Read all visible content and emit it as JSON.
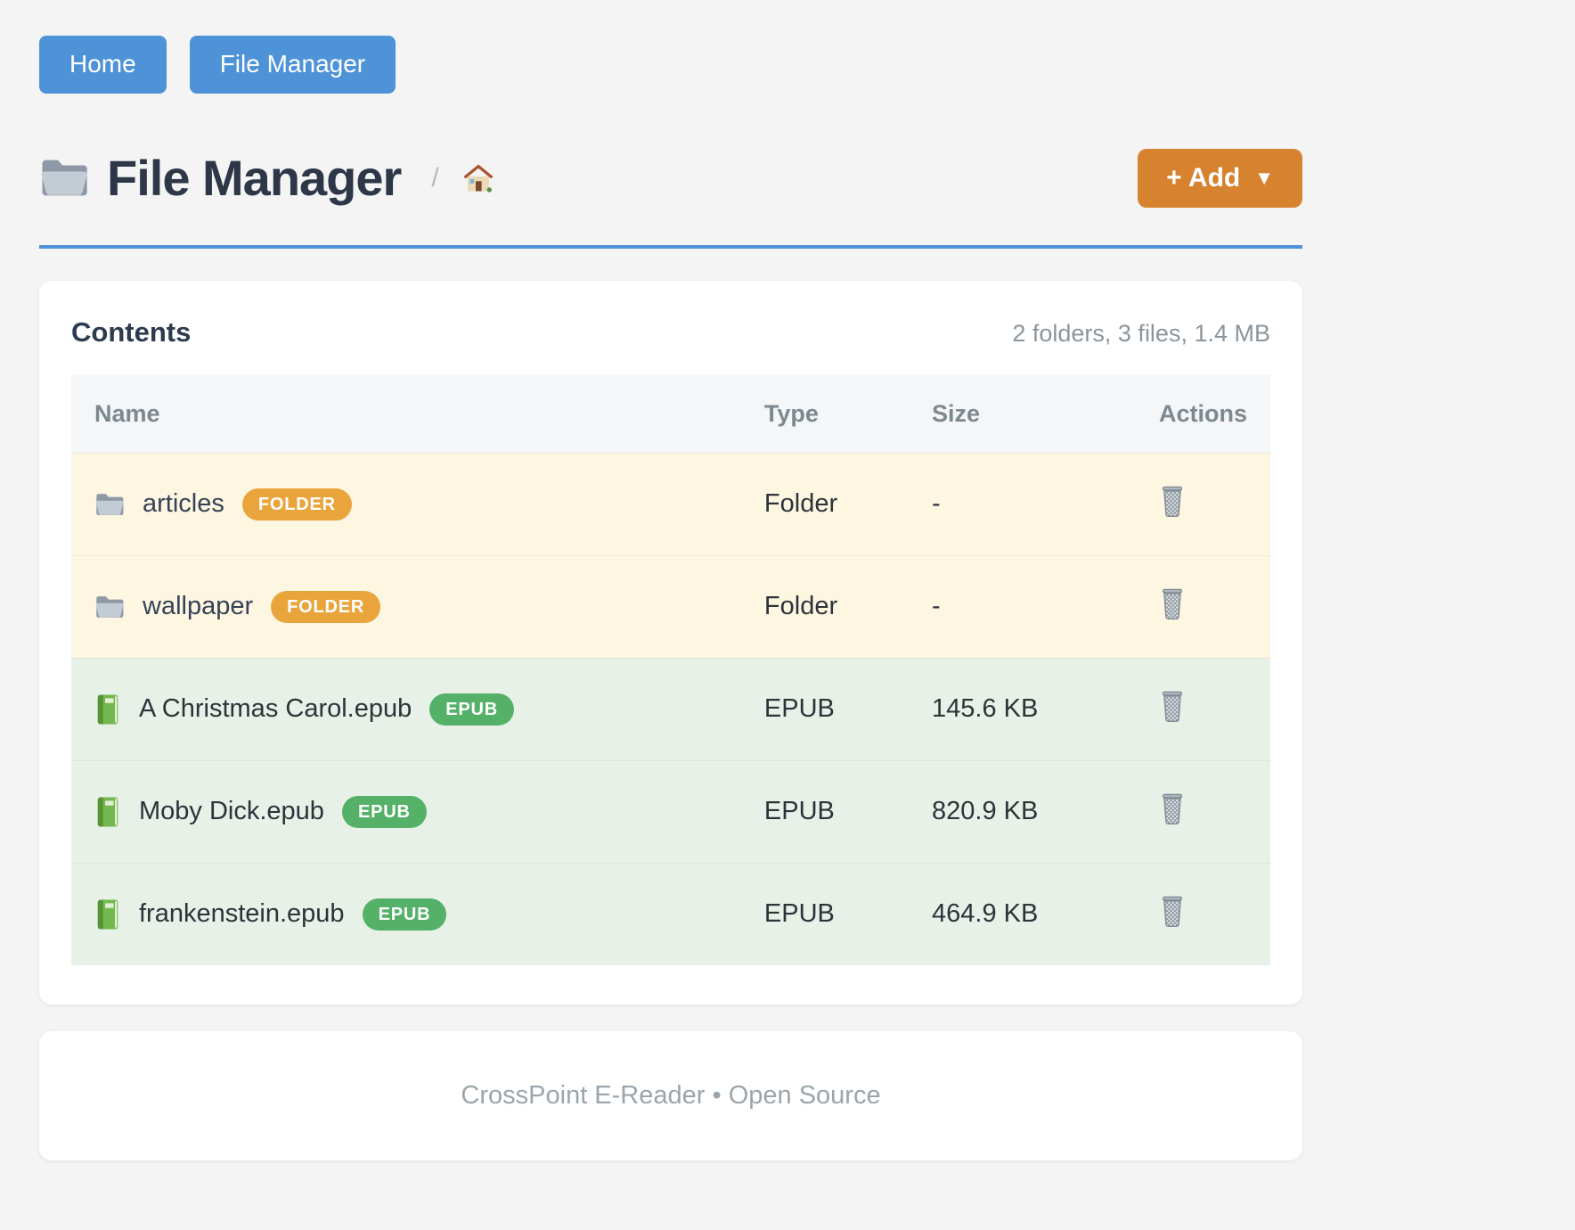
{
  "nav": {
    "buttons": [
      {
        "label": "Home"
      },
      {
        "label": "File Manager"
      }
    ]
  },
  "header": {
    "title": "File Manager",
    "breadcrumb_separator": "/",
    "add_button": {
      "label": "+ Add",
      "caret": "▼"
    }
  },
  "contents": {
    "heading": "Contents",
    "summary": "2 folders, 3 files, 1.4 MB",
    "table": {
      "columns": [
        "Name",
        "Type",
        "Size",
        "Actions"
      ],
      "rows": [
        {
          "name": "articles",
          "badge": "FOLDER",
          "kind": "folder",
          "type": "Folder",
          "size": "-"
        },
        {
          "name": "wallpaper",
          "badge": "FOLDER",
          "kind": "folder",
          "type": "Folder",
          "size": "-"
        },
        {
          "name": "A Christmas Carol.epub",
          "badge": "EPUB",
          "kind": "epub",
          "type": "EPUB",
          "size": "145.6 KB"
        },
        {
          "name": "Moby Dick.epub",
          "badge": "EPUB",
          "kind": "epub",
          "type": "EPUB",
          "size": "820.9 KB"
        },
        {
          "name": "frankenstein.epub",
          "badge": "EPUB",
          "kind": "epub",
          "type": "EPUB",
          "size": "464.9 KB"
        }
      ]
    }
  },
  "footer": {
    "text": "CrossPoint E-Reader • Open Source"
  },
  "colors": {
    "page_background": "#f4f4f5",
    "nav_button_blue": "#4e92d8",
    "title_rule_blue": "#4e92d8",
    "add_button_orange": "#d6822f",
    "folder_badge": "#eaa43c",
    "epub_badge": "#55b168",
    "folder_row_background": "#fdf6e1",
    "epub_row_background": "#e7f1e7",
    "table_header_background": "#f4f6f8"
  }
}
